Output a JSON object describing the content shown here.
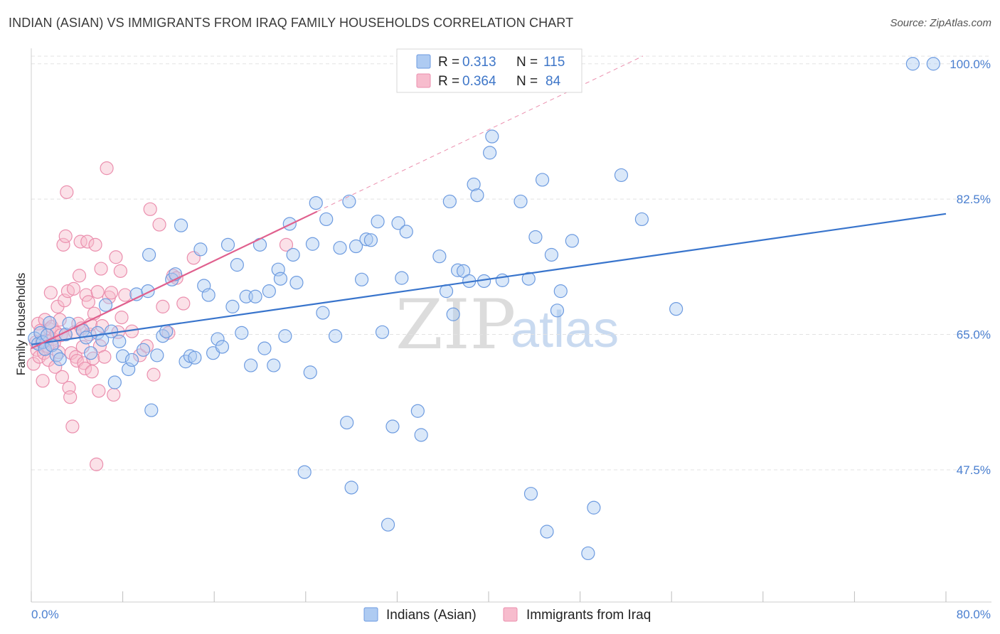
{
  "header": {
    "title": "INDIAN (ASIAN) VS IMMIGRANTS FROM IRAQ FAMILY HOUSEHOLDS CORRELATION CHART",
    "source": "Source: ZipAtlas.com"
  },
  "watermark": {
    "zip": "ZIP",
    "atlas": "atlas"
  },
  "colors": {
    "blue_fill": "#aecbf2",
    "blue_stroke": "#6d9be0",
    "blue_line": "#3874cc",
    "pink_fill": "#f7bccd",
    "pink_stroke": "#eb8fae",
    "pink_line": "#e0608e",
    "grid": "#e3e3e3",
    "axis_label": "#4a7fd0"
  },
  "legend": {
    "r_label": "R =",
    "n_label": "N =",
    "rows": [
      {
        "r": "0.313",
        "n": "115"
      },
      {
        "r": "0.364",
        "n": "84"
      }
    ]
  },
  "chart_data": {
    "type": "scatter",
    "title": "INDIAN (ASIAN) VS IMMIGRANTS FROM IRAQ FAMILY HOUSEHOLDS CORRELATION CHART",
    "xlabel": "",
    "ylabel": "Family Households",
    "xlim": [
      0,
      80
    ],
    "ylim": [
      30.4,
      102.0
    ],
    "x_tick_labels": [
      "0.0%",
      "80.0%"
    ],
    "y_ticks": [
      47.5,
      65.0,
      82.5,
      100.0
    ],
    "y_tick_labels": [
      "47.5%",
      "65.0%",
      "82.5%",
      "100.0%"
    ],
    "grid": true,
    "legend_position": "top-center",
    "series": [
      {
        "name": "Indians (Asian)",
        "color": "blue",
        "trend": {
          "x": [
            0,
            80
          ],
          "y": [
            63.7,
            80.6
          ]
        },
        "points": [
          [
            0.3,
            64.5
          ],
          [
            0.6,
            63.8
          ],
          [
            0.8,
            65.2
          ],
          [
            1.0,
            64.0
          ],
          [
            1.2,
            63.1
          ],
          [
            1.4,
            64.9
          ],
          [
            1.6,
            66.5
          ],
          [
            1.8,
            63.6
          ],
          [
            2.2,
            62.3
          ],
          [
            2.5,
            61.8
          ],
          [
            3.0,
            65.0
          ],
          [
            3.3,
            66.4
          ],
          [
            4.5,
            65.5
          ],
          [
            4.8,
            64.6
          ],
          [
            5.2,
            62.6
          ],
          [
            5.8,
            65.2
          ],
          [
            6.2,
            64.3
          ],
          [
            6.5,
            68.8
          ],
          [
            7.0,
            65.4
          ],
          [
            7.3,
            58.8
          ],
          [
            7.7,
            64.1
          ],
          [
            8.0,
            62.2
          ],
          [
            8.5,
            60.5
          ],
          [
            8.8,
            61.7
          ],
          [
            9.2,
            70.2
          ],
          [
            9.8,
            63.0
          ],
          [
            10.2,
            70.6
          ],
          [
            10.3,
            75.3
          ],
          [
            10.5,
            55.2
          ],
          [
            11.0,
            62.3
          ],
          [
            11.5,
            64.8
          ],
          [
            11.8,
            65.4
          ],
          [
            12.3,
            72.1
          ],
          [
            12.6,
            72.8
          ],
          [
            13.1,
            79.1
          ],
          [
            13.5,
            61.5
          ],
          [
            13.9,
            62.2
          ],
          [
            14.3,
            62.0
          ],
          [
            14.8,
            76.0
          ],
          [
            15.1,
            71.3
          ],
          [
            15.5,
            70.1
          ],
          [
            15.9,
            62.6
          ],
          [
            16.3,
            64.4
          ],
          [
            16.7,
            63.4
          ],
          [
            17.2,
            76.6
          ],
          [
            17.6,
            68.6
          ],
          [
            18.0,
            74.0
          ],
          [
            18.4,
            65.2
          ],
          [
            18.8,
            69.9
          ],
          [
            19.2,
            61.0
          ],
          [
            19.6,
            69.9
          ],
          [
            20.0,
            76.6
          ],
          [
            20.4,
            63.2
          ],
          [
            20.8,
            70.6
          ],
          [
            21.2,
            61.0
          ],
          [
            21.6,
            73.4
          ],
          [
            21.8,
            72.2
          ],
          [
            22.2,
            64.8
          ],
          [
            22.6,
            79.3
          ],
          [
            22.9,
            75.3
          ],
          [
            23.2,
            71.7
          ],
          [
            23.9,
            47.2
          ],
          [
            24.4,
            60.1
          ],
          [
            24.6,
            76.7
          ],
          [
            24.9,
            82.0
          ],
          [
            25.5,
            67.8
          ],
          [
            25.8,
            79.9
          ],
          [
            26.6,
            64.8
          ],
          [
            27.0,
            76.2
          ],
          [
            27.6,
            53.6
          ],
          [
            27.8,
            82.2
          ],
          [
            28.0,
            45.2
          ],
          [
            28.4,
            76.4
          ],
          [
            28.9,
            72.1
          ],
          [
            29.3,
            77.3
          ],
          [
            29.7,
            77.2
          ],
          [
            30.3,
            79.6
          ],
          [
            30.7,
            65.3
          ],
          [
            31.2,
            40.4
          ],
          [
            31.6,
            53.1
          ],
          [
            32.1,
            79.4
          ],
          [
            32.4,
            72.3
          ],
          [
            32.8,
            78.3
          ],
          [
            33.8,
            55.1
          ],
          [
            34.1,
            52.0
          ],
          [
            35.7,
            75.1
          ],
          [
            36.3,
            70.6
          ],
          [
            36.6,
            82.2
          ],
          [
            36.9,
            67.6
          ],
          [
            37.3,
            73.3
          ],
          [
            37.8,
            73.2
          ],
          [
            38.3,
            71.9
          ],
          [
            38.7,
            84.4
          ],
          [
            39.0,
            83.0
          ],
          [
            39.6,
            71.9
          ],
          [
            40.1,
            88.5
          ],
          [
            40.3,
            90.6
          ],
          [
            41.2,
            72.0
          ],
          [
            42.8,
            82.2
          ],
          [
            43.5,
            72.2
          ],
          [
            43.7,
            44.4
          ],
          [
            44.1,
            77.6
          ],
          [
            44.7,
            85.0
          ],
          [
            45.1,
            39.5
          ],
          [
            45.5,
            75.3
          ],
          [
            46.0,
            68.1
          ],
          [
            46.3,
            70.6
          ],
          [
            47.3,
            77.1
          ],
          [
            48.7,
            36.7
          ],
          [
            49.2,
            42.6
          ],
          [
            51.6,
            85.6
          ],
          [
            53.4,
            79.9
          ],
          [
            56.4,
            68.3
          ],
          [
            77.1,
            100.0
          ],
          [
            78.9,
            100.0
          ]
        ]
      },
      {
        "name": "Immigrants from Iraq",
        "color": "pink",
        "trend": {
          "x": [
            0,
            25
          ],
          "y": [
            63.2,
            80.9
          ]
        },
        "trend_extension": {
          "x": [
            25,
            53.5
          ],
          "y": [
            80.9,
            101.0
          ]
        },
        "points": [
          [
            0.2,
            61.2
          ],
          [
            0.4,
            64.0
          ],
          [
            0.5,
            63.0
          ],
          [
            0.6,
            66.4
          ],
          [
            0.7,
            62.1
          ],
          [
            0.8,
            65.5
          ],
          [
            0.9,
            64.1
          ],
          [
            1.0,
            59.0
          ],
          [
            1.1,
            62.6
          ],
          [
            1.2,
            66.9
          ],
          [
            1.3,
            64.2
          ],
          [
            1.4,
            63.5
          ],
          [
            1.5,
            61.7
          ],
          [
            1.6,
            65.7
          ],
          [
            1.7,
            70.4
          ],
          [
            1.8,
            66.0
          ],
          [
            1.9,
            64.4
          ],
          [
            2.0,
            63.9
          ],
          [
            2.1,
            60.8
          ],
          [
            2.2,
            65.2
          ],
          [
            2.3,
            68.6
          ],
          [
            2.4,
            62.7
          ],
          [
            2.5,
            66.9
          ],
          [
            2.6,
            64.9
          ],
          [
            2.7,
            59.5
          ],
          [
            2.8,
            76.6
          ],
          [
            2.9,
            69.4
          ],
          [
            3.0,
            65.0
          ],
          [
            3.0,
            77.7
          ],
          [
            3.1,
            83.4
          ],
          [
            3.2,
            70.6
          ],
          [
            3.3,
            58.1
          ],
          [
            3.4,
            56.9
          ],
          [
            3.5,
            62.6
          ],
          [
            3.6,
            53.1
          ],
          [
            3.7,
            70.9
          ],
          [
            3.8,
            65.3
          ],
          [
            3.9,
            62.1
          ],
          [
            4.0,
            61.6
          ],
          [
            4.1,
            66.4
          ],
          [
            4.2,
            72.6
          ],
          [
            4.3,
            77.0
          ],
          [
            4.4,
            65.8
          ],
          [
            4.5,
            63.4
          ],
          [
            4.6,
            61.3
          ],
          [
            4.7,
            60.6
          ],
          [
            4.8,
            70.1
          ],
          [
            4.9,
            77.0
          ],
          [
            5.0,
            69.2
          ],
          [
            5.1,
            65.0
          ],
          [
            5.2,
            66.3
          ],
          [
            5.3,
            60.2
          ],
          [
            5.4,
            61.9
          ],
          [
            5.5,
            67.7
          ],
          [
            5.6,
            76.6
          ],
          [
            5.7,
            48.2
          ],
          [
            5.8,
            70.5
          ],
          [
            5.9,
            57.7
          ],
          [
            6.0,
            63.5
          ],
          [
            6.1,
            73.5
          ],
          [
            6.2,
            66.1
          ],
          [
            6.4,
            62.1
          ],
          [
            6.6,
            86.5
          ],
          [
            6.8,
            69.8
          ],
          [
            7.0,
            70.4
          ],
          [
            7.2,
            57.2
          ],
          [
            7.4,
            75.0
          ],
          [
            7.6,
            65.3
          ],
          [
            7.8,
            73.2
          ],
          [
            7.9,
            67.2
          ],
          [
            8.2,
            70.1
          ],
          [
            8.8,
            65.4
          ],
          [
            9.5,
            62.3
          ],
          [
            10.1,
            63.5
          ],
          [
            10.4,
            81.2
          ],
          [
            10.7,
            59.8
          ],
          [
            11.2,
            79.2
          ],
          [
            11.5,
            68.6
          ],
          [
            12.0,
            65.2
          ],
          [
            12.4,
            72.6
          ],
          [
            12.7,
            72.3
          ],
          [
            13.3,
            69.0
          ],
          [
            14.2,
            74.9
          ],
          [
            22.3,
            76.6
          ]
        ]
      }
    ]
  },
  "bottom_legend": {
    "items": [
      {
        "label": "Indians (Asian)"
      },
      {
        "label": "Immigrants from Iraq"
      }
    ]
  }
}
